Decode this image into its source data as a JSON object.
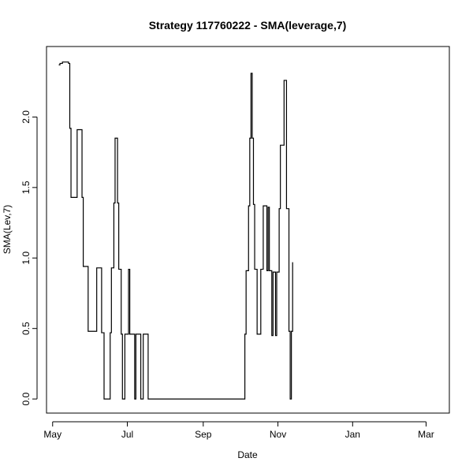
{
  "chart_data": {
    "type": "line",
    "title": "Strategy 117760222 - SMA(leverage,7)",
    "xlabel": "Date",
    "ylabel": "SMA(Lev,7)",
    "x_ticks": [
      {
        "label": "May",
        "date": "2011-05-01"
      },
      {
        "label": "Jul",
        "date": "2011-07-01"
      },
      {
        "label": "Sep",
        "date": "2011-09-01"
      },
      {
        "label": "Nov",
        "date": "2011-11-01"
      },
      {
        "label": "Jan",
        "date": "2012-01-01"
      },
      {
        "label": "Mar",
        "date": "2012-03-01"
      }
    ],
    "y_ticks": [
      0.0,
      0.5,
      1.0,
      1.5,
      2.0
    ],
    "y_tick_labels": [
      "0.0",
      "0.5",
      "1.0",
      "1.5",
      "2.0"
    ],
    "xlim": [
      "2011-04-26",
      "2012-03-20"
    ],
    "ylim": [
      -0.1,
      2.5
    ],
    "grid": false,
    "series": [
      {
        "line_color": "#000000",
        "step": true,
        "points": [
          [
            "2011-05-06",
            2.37
          ],
          [
            "2011-05-07",
            2.38
          ],
          [
            "2011-05-09",
            2.39
          ],
          [
            "2011-05-14",
            2.38
          ],
          [
            "2011-05-15",
            1.92
          ],
          [
            "2011-05-16",
            1.43
          ],
          [
            "2011-05-21",
            1.91
          ],
          [
            "2011-05-25",
            1.43
          ],
          [
            "2011-05-26",
            0.94
          ],
          [
            "2011-05-30",
            0.48
          ],
          [
            "2011-06-06",
            0.93
          ],
          [
            "2011-06-10",
            0.47
          ],
          [
            "2011-06-12",
            0.0
          ],
          [
            "2011-06-17",
            0.47
          ],
          [
            "2011-06-18",
            0.93
          ],
          [
            "2011-06-20",
            1.39
          ],
          [
            "2011-06-21",
            1.85
          ],
          [
            "2011-06-23",
            1.39
          ],
          [
            "2011-06-24",
            0.92
          ],
          [
            "2011-06-26",
            0.46
          ],
          [
            "2011-06-27",
            0.0
          ],
          [
            "2011-06-29",
            0.46
          ],
          [
            "2011-07-02",
            0.92
          ],
          [
            "2011-07-03",
            0.46
          ],
          [
            "2011-07-07",
            0.0
          ],
          [
            "2011-07-08",
            0.46
          ],
          [
            "2011-07-11",
            0.46
          ],
          [
            "2011-07-12",
            0.0
          ],
          [
            "2011-07-14",
            0.46
          ],
          [
            "2011-07-18",
            0.0
          ],
          [
            "2011-10-04",
            0.0
          ],
          [
            "2011-10-05",
            0.46
          ],
          [
            "2011-10-06",
            0.91
          ],
          [
            "2011-10-08",
            1.37
          ],
          [
            "2011-10-09",
            1.85
          ],
          [
            "2011-10-10",
            2.31
          ],
          [
            "2011-10-11",
            1.85
          ],
          [
            "2011-10-12",
            1.38
          ],
          [
            "2011-10-13",
            0.92
          ],
          [
            "2011-10-15",
            0.46
          ],
          [
            "2011-10-17",
            0.46
          ],
          [
            "2011-10-18",
            0.92
          ],
          [
            "2011-10-20",
            1.37
          ],
          [
            "2011-10-23",
            0.91
          ],
          [
            "2011-10-24",
            1.36
          ],
          [
            "2011-10-25",
            0.91
          ],
          [
            "2011-10-27",
            0.45
          ],
          [
            "2011-10-28",
            0.9
          ],
          [
            "2011-10-30",
            0.45
          ],
          [
            "2011-10-31",
            0.9
          ],
          [
            "2011-11-02",
            1.35
          ],
          [
            "2011-11-03",
            1.8
          ],
          [
            "2011-11-06",
            2.26
          ],
          [
            "2011-11-08",
            1.35
          ],
          [
            "2011-11-10",
            0.48
          ],
          [
            "2011-11-11",
            0.0
          ],
          [
            "2011-11-12",
            0.48
          ],
          [
            "2011-11-13",
            0.97
          ]
        ]
      }
    ]
  }
}
